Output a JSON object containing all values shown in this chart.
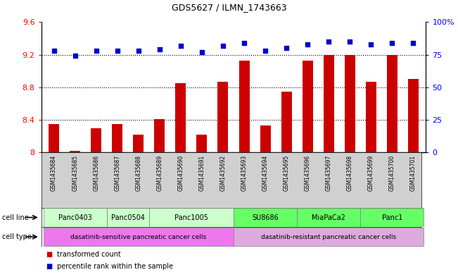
{
  "title": "GDS5627 / ILMN_1743663",
  "samples": [
    "GSM1435684",
    "GSM1435685",
    "GSM1435686",
    "GSM1435687",
    "GSM1435688",
    "GSM1435689",
    "GSM1435690",
    "GSM1435691",
    "GSM1435692",
    "GSM1435693",
    "GSM1435694",
    "GSM1435695",
    "GSM1435696",
    "GSM1435697",
    "GSM1435698",
    "GSM1435699",
    "GSM1435700",
    "GSM1435701"
  ],
  "transformed_count": [
    8.35,
    8.02,
    8.3,
    8.35,
    8.22,
    8.41,
    8.85,
    8.22,
    8.87,
    9.13,
    8.33,
    8.75,
    9.13,
    9.2,
    9.2,
    8.87,
    9.2,
    8.9
  ],
  "percentile_rank": [
    78,
    74,
    78,
    78,
    78,
    79,
    82,
    77,
    82,
    84,
    78,
    80,
    83,
    85,
    85,
    83,
    84,
    84
  ],
  "cell_lines": [
    {
      "name": "Panc0403",
      "start": 0,
      "end": 2,
      "color": "#ccffcc"
    },
    {
      "name": "Panc0504",
      "start": 3,
      "end": 4,
      "color": "#ccffcc"
    },
    {
      "name": "Panc1005",
      "start": 5,
      "end": 8,
      "color": "#ccffcc"
    },
    {
      "name": "SU8686",
      "start": 9,
      "end": 11,
      "color": "#66ff66"
    },
    {
      "name": "MiaPaCa2",
      "start": 12,
      "end": 14,
      "color": "#66ff66"
    },
    {
      "name": "Panc1",
      "start": 15,
      "end": 17,
      "color": "#66ff66"
    }
  ],
  "cell_types": [
    {
      "name": "dasatinib-sensitive pancreatic cancer cells",
      "start": 0,
      "end": 8,
      "color": "#ee77ee"
    },
    {
      "name": "dasatinib-resistant pancreatic cancer cells",
      "start": 9,
      "end": 17,
      "color": "#ddaadd"
    }
  ],
  "bar_color": "#cc0000",
  "dot_color": "#0000cc",
  "ymin": 8.0,
  "ymax": 9.6,
  "ylim_left": [
    8.0,
    9.6
  ],
  "ylim_right": [
    0,
    100
  ],
  "yticks_left": [
    8.0,
    8.4,
    8.8,
    9.2,
    9.6
  ],
  "ytick_labels_left": [
    "8",
    "8.4",
    "8.8",
    "9.2",
    "9.6"
  ],
  "yticks_right": [
    0,
    25,
    50,
    75,
    100
  ],
  "ytick_labels_right": [
    "0",
    "25",
    "50",
    "75",
    "100%"
  ],
  "grid_values": [
    8.4,
    8.8,
    9.2
  ],
  "bar_width": 0.5,
  "legend_items": [
    {
      "label": "transformed count",
      "color": "#cc0000"
    },
    {
      "label": "percentile rank within the sample",
      "color": "#0000cc"
    }
  ]
}
